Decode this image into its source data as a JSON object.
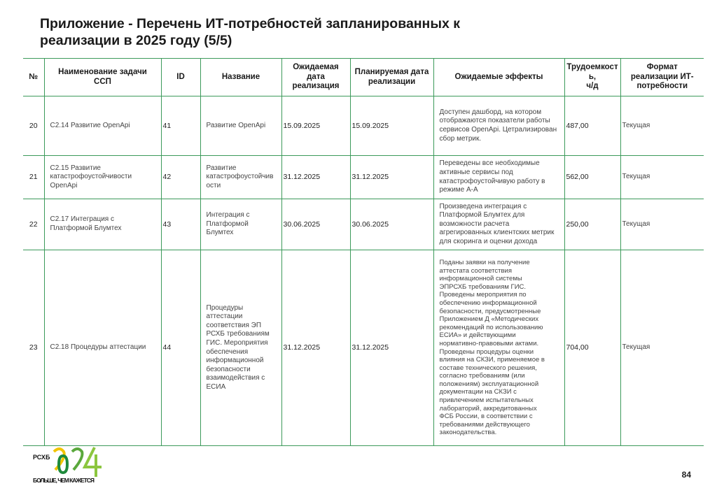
{
  "title": "Приложение - Перечень ИТ-потребностей запланированных к\nреализации в 2025 году (5/5)",
  "table": {
    "headers": [
      "№",
      "Наименование задачи\nССП",
      "ID",
      "Название",
      "Ожидаемая\nдата\nреализация",
      "Планируемая дата\nреализации",
      "Ожидаемые эффекты",
      "Трудоемкост\nь,\nч/д",
      "Формат\nреализации ИТ-\nпотребности"
    ],
    "rows": [
      {
        "no": "20",
        "task": "С2.14 Развитие OpenApi",
        "id": "41",
        "name": "Развитие OpenApi",
        "expected_date": "15.09.2025",
        "planned_date": "15.09.2025",
        "effects": "Доступен дашборд, на котором\nотображаются показатели работы\nсервисов OpenApi. Цетрализирован\nсбор метрик.",
        "effort": "487,00",
        "format": "Текущая"
      },
      {
        "no": "21",
        "task": "С2.15 Развитие\nкатастрофоустойчивости\nOpenApi",
        "id": "42",
        "name": "Развитие\nкатастрофоустойчив\nости",
        "expected_date": "31.12.2025",
        "planned_date": "31.12.2025",
        "effects": "Переведены все необходимые\nактивные сервисы  под\nкатастрофоустойчивую работу в\nрежиме А-А",
        "effort": "562,00",
        "format": "Текущая"
      },
      {
        "no": "22",
        "task": "С2.17 Интеграция с\nПлатформой Блумтех",
        "id": "43",
        "name": "Интеграция с\nПлатформой\nБлумтех",
        "expected_date": "30.06.2025",
        "planned_date": "30.06.2025",
        "effects": "Произведена интеграция с\nПлатформой Блумтех для\nвозможности расчета\nагрегированных клиентских метрик\nдля скоринга и оценки дохода",
        "effort": "250,00",
        "format": "Текущая"
      },
      {
        "no": "23",
        "task": "С2.18 Процедуры аттестации",
        "id": "44",
        "name": "Процедуры\nаттестации\nсоответствия ЭП\nРСХБ требованиям\nГИС. Мероприятия\nобеспечения\nинформационной\nбезопасности\nвзаимодействия с\nЕСИА",
        "expected_date": "31.12.2025",
        "planned_date": "31.12.2025",
        "effects": "Поданы заявки на получение\nаттестата соответствия\nинформационной системы\nЭПРСХБ требованиям ГИС.\nПроведены мероприятия по\nобеспечению информационной\nбезопасности, предусмотренные\nПриложением Д «Методических\nрекомендаций по использованию\nЕСИА» и действующими\nнормативно-правовыми актами.\nПроведены процедуры оценки\nвлияния на СКЗИ, применяемое в\nсоставе технического решения,\nсогласно требованиям (или\nположениям) эксплуатационной\nдокументации на СКЗИ с\nпривлечением испытательных\nлабораторий, аккредитованных\nФСБ России, в соответствии с\nтребованиями действующего\nзаконодательства.",
        "effort": "704,00",
        "format": "Текущая"
      }
    ]
  },
  "logo": {
    "brand": "РСХБ",
    "year": "2024",
    "slogan": "БОЛЬШЕ, ЧЕМ КАЖЕТСЯ",
    "colors": [
      "#f2c500",
      "#1e8a3c",
      "#8cc63f"
    ]
  },
  "page_number": "84"
}
